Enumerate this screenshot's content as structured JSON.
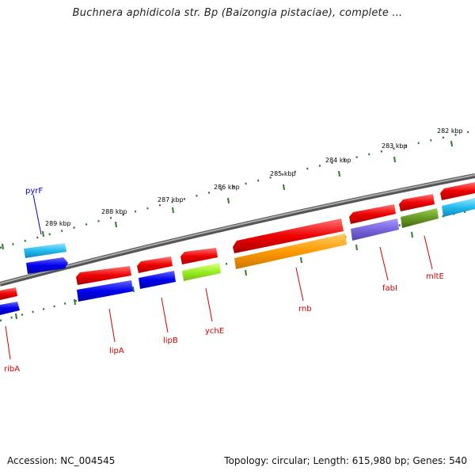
{
  "title": "Buchnera aphidicola str. Bp (Baizongia pistaciae), complete ...",
  "footer": {
    "accession": "Accession: NC_004545",
    "summary": "Topology: circular; Length: 615,980 bp; Genes: 540"
  },
  "colors": {
    "backbone": "#808080",
    "tick": "#2e7d2e",
    "label_red": "#cc0000",
    "label_blue": "#0000cc",
    "red": "#ee1111",
    "blue": "#1111dd",
    "cyan": "#22bbee",
    "orange": "#ff9900",
    "lime": "#99ee22",
    "purple": "#7766dd",
    "olive": "#669922"
  },
  "ticks": [
    "289 kbp",
    "288 kbp",
    "287 kbp",
    "286 kbp",
    "285 kbp",
    "284 kbp",
    "283 kbp",
    "282 kbp"
  ],
  "genes": [
    {
      "name": "",
      "strand": "top",
      "color": "red",
      "label": ""
    },
    {
      "name": "ribA",
      "strand": "bottom",
      "color": "blue",
      "label": "ribA"
    },
    {
      "name": "pyrF",
      "strand": "top",
      "color": "cyan",
      "label": "pyrF"
    },
    {
      "name": "pyrF-2",
      "strand": "bottom",
      "color": "blue",
      "label": ""
    },
    {
      "name": "lipA-top",
      "strand": "top",
      "color": "red",
      "label": ""
    },
    {
      "name": "lipA",
      "strand": "bottom",
      "color": "blue",
      "label": "lipA"
    },
    {
      "name": "lipB-top",
      "strand": "top",
      "color": "red",
      "label": ""
    },
    {
      "name": "lipB",
      "strand": "bottom",
      "color": "blue",
      "label": "lipB"
    },
    {
      "name": "ychE-top",
      "strand": "top",
      "color": "red",
      "label": ""
    },
    {
      "name": "ychE",
      "strand": "bottom",
      "color": "lime",
      "label": "ychE"
    },
    {
      "name": "rnb-top",
      "strand": "top",
      "color": "red",
      "label": ""
    },
    {
      "name": "rnb",
      "strand": "bottom",
      "color": "orange",
      "label": "rnb"
    },
    {
      "name": "fabI-top",
      "strand": "top",
      "color": "red",
      "label": ""
    },
    {
      "name": "fabI",
      "strand": "bottom",
      "color": "purple",
      "label": "fabI"
    },
    {
      "name": "mltE-top",
      "strand": "top",
      "color": "red",
      "label": ""
    },
    {
      "name": "mltE",
      "strand": "bottom",
      "color": "olive",
      "label": "mltE"
    },
    {
      "name": "right-top",
      "strand": "top",
      "color": "red",
      "label": ""
    },
    {
      "name": "right-bottom",
      "strand": "bottom",
      "color": "cyan",
      "label": ""
    }
  ]
}
